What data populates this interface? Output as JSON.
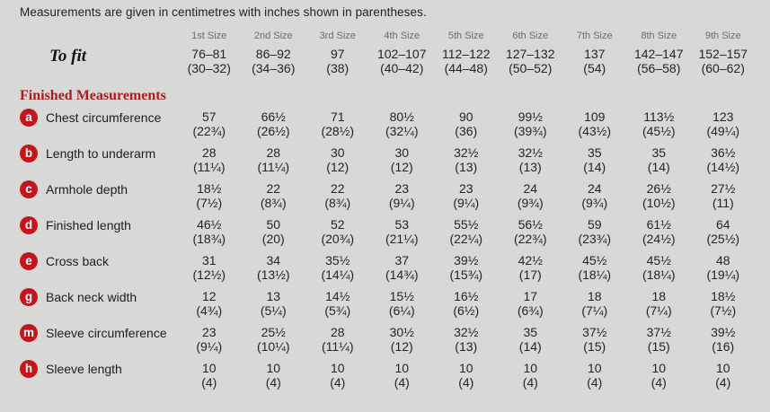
{
  "note": "Measurements are given in centimetres with inches shown in parentheses.",
  "colors": {
    "background": "#d8d8d7",
    "badge_red": "#c4151c",
    "heading_red": "#a81d22",
    "size_header_gray": "#6a6b6d",
    "text": "#242426"
  },
  "table": {
    "size_headers": [
      "1st Size",
      "2nd Size",
      "3rd Size",
      "4th Size",
      "5th Size",
      "6th Size",
      "7th Size",
      "8th Size",
      "9th Size"
    ],
    "to_fit": {
      "label": "To fit",
      "cm": [
        "76–81",
        "86–92",
        "97",
        "102–107",
        "112–122",
        "127–132",
        "137",
        "142–147",
        "152–157"
      ],
      "in": [
        "(30–32)",
        "(34–36)",
        "(38)",
        "(40–42)",
        "(44–48)",
        "(50–52)",
        "(54)",
        "(56–58)",
        "(60–62)"
      ]
    },
    "section_header": "Finished Measurements",
    "rows": [
      {
        "badge": "a",
        "label": "Chest circumference",
        "cm": [
          "57",
          "66½",
          "71",
          "80½",
          "90",
          "99½",
          "109",
          "113½",
          "123"
        ],
        "in": [
          "(22¾)",
          "(26½)",
          "(28½)",
          "(32¼)",
          "(36)",
          "(39¾)",
          "(43½)",
          "(45½)",
          "(49¼)"
        ]
      },
      {
        "badge": "b",
        "label": "Length to underarm",
        "cm": [
          "28",
          "28",
          "30",
          "30",
          "32½",
          "32½",
          "35",
          "35",
          "36½"
        ],
        "in": [
          "(11¼)",
          "(11¼)",
          "(12)",
          "(12)",
          "(13)",
          "(13)",
          "(14)",
          "(14)",
          "(14½)"
        ]
      },
      {
        "badge": "c",
        "label": "Armhole depth",
        "cm": [
          "18½",
          "22",
          "22",
          "23",
          "23",
          "24",
          "24",
          "26½",
          "27½"
        ],
        "in": [
          "(7½)",
          "(8¾)",
          "(8¾)",
          "(9¼)",
          "(9¼)",
          "(9¾)",
          "(9¾)",
          "(10½)",
          "(11)"
        ]
      },
      {
        "badge": "d",
        "label": "Finished length",
        "cm": [
          "46½",
          "50",
          "52",
          "53",
          "55½",
          "56½",
          "59",
          "61½",
          "64"
        ],
        "in": [
          "(18¾)",
          "(20)",
          "(20¾)",
          "(21¼)",
          "(22¼)",
          "(22¾)",
          "(23¾)",
          "(24½)",
          "(25½)"
        ]
      },
      {
        "badge": "e",
        "label": "Cross back",
        "cm": [
          "31",
          "34",
          "35½",
          "37",
          "39½",
          "42½",
          "45½",
          "45½",
          "48"
        ],
        "in": [
          "(12½)",
          "(13½)",
          "(14¼)",
          "(14¾)",
          "(15¾)",
          "(17)",
          "(18¼)",
          "(18¼)",
          "(19¼)"
        ]
      },
      {
        "badge": "g",
        "label": "Back neck width",
        "cm": [
          "12",
          "13",
          "14½",
          "15½",
          "16½",
          "17",
          "18",
          "18",
          "18½"
        ],
        "in": [
          "(4¾)",
          "(5¼)",
          "(5¾)",
          "(6¼)",
          "(6½)",
          "(6¾)",
          "(7¼)",
          "(7¼)",
          "(7½)"
        ]
      },
      {
        "badge": "m",
        "label": "Sleeve circumference",
        "cm": [
          "23",
          "25½",
          "28",
          "30½",
          "32½",
          "35",
          "37½",
          "37½",
          "39½"
        ],
        "in": [
          "(9¼)",
          "(10¼)",
          "(11¼)",
          "(12)",
          "(13)",
          "(14)",
          "(15)",
          "(15)",
          "(16)"
        ]
      },
      {
        "badge": "h",
        "label": "Sleeve length",
        "cm": [
          "10",
          "10",
          "10",
          "10",
          "10",
          "10",
          "10",
          "10",
          "10"
        ],
        "in": [
          "(4)",
          "(4)",
          "(4)",
          "(4)",
          "(4)",
          "(4)",
          "(4)",
          "(4)",
          "(4)"
        ]
      }
    ]
  }
}
